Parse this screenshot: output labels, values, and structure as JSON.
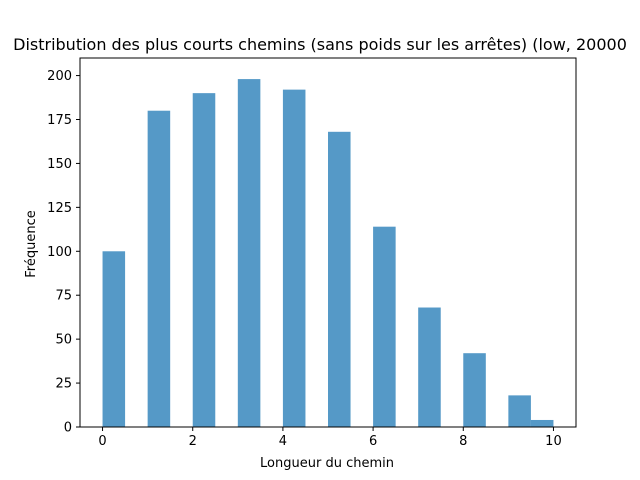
{
  "chart_data": {
    "type": "bar",
    "title": "Distribution des plus courts chemins (sans poids sur les arrêtes) (low, 20000",
    "xlabel": "Longueur du chemin",
    "ylabel": "Fréquence",
    "xlim": [
      -0.5,
      10.5
    ],
    "ylim": [
      0,
      210
    ],
    "xticks": [
      0,
      2,
      4,
      6,
      8,
      10
    ],
    "yticks": [
      0,
      25,
      50,
      75,
      100,
      125,
      150,
      175,
      200
    ],
    "grid": false,
    "bar_color": "#5599c7",
    "bars": [
      {
        "x0": 0.0,
        "x1": 0.5,
        "value": 100
      },
      {
        "x0": 1.0,
        "x1": 1.5,
        "value": 180
      },
      {
        "x0": 2.0,
        "x1": 2.5,
        "value": 190
      },
      {
        "x0": 3.0,
        "x1": 3.5,
        "value": 198
      },
      {
        "x0": 4.0,
        "x1": 4.5,
        "value": 192
      },
      {
        "x0": 5.0,
        "x1": 5.5,
        "value": 168
      },
      {
        "x0": 6.0,
        "x1": 6.5,
        "value": 114
      },
      {
        "x0": 7.0,
        "x1": 7.5,
        "value": 68
      },
      {
        "x0": 8.0,
        "x1": 8.5,
        "value": 42
      },
      {
        "x0": 9.0,
        "x1": 9.5,
        "value": 18
      },
      {
        "x0": 9.5,
        "x1": 10.0,
        "value": 4
      }
    ]
  }
}
